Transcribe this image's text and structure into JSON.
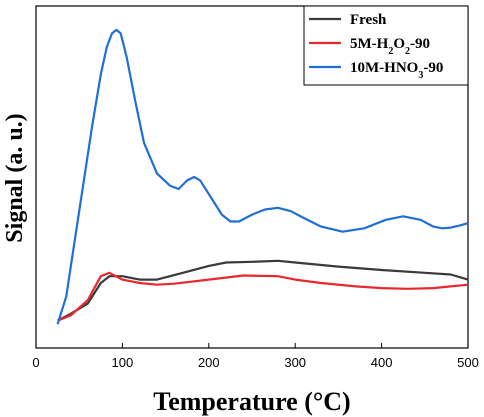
{
  "chart_data": {
    "type": "line",
    "title": "",
    "xlabel": "Temperature (°C)",
    "ylabel": "Signal (a. u.)",
    "xlim": [
      0,
      500
    ],
    "ylim": [
      0,
      100
    ],
    "xticks": [
      0,
      100,
      200,
      300,
      400,
      500
    ],
    "yticks_shown": false,
    "grid": false,
    "legend_position": "top-right",
    "series": [
      {
        "name_parts": [
          {
            "t": "Fresh"
          }
        ],
        "color": "#3a3a3a",
        "x": [
          25,
          40,
          60,
          75,
          85,
          100,
          120,
          140,
          170,
          200,
          220,
          250,
          280,
          300,
          350,
          400,
          450,
          480,
          500
        ],
        "y": [
          8,
          10,
          13,
          19,
          21,
          21,
          20,
          20,
          22,
          24,
          25,
          25.2,
          25.5,
          25,
          23.8,
          22.8,
          22,
          21.5,
          20
        ]
      },
      {
        "name_parts": [
          {
            "t": "5M-H"
          },
          {
            "t": "2",
            "sub": true
          },
          {
            "t": "O"
          },
          {
            "t": "2",
            "sub": true
          },
          {
            "t": "-90"
          }
        ],
        "color": "#e8282e",
        "x": [
          25,
          40,
          60,
          75,
          85,
          100,
          120,
          140,
          160,
          200,
          240,
          280,
          300,
          330,
          370,
          400,
          430,
          460,
          480,
          500
        ],
        "y": [
          8,
          9.5,
          14,
          21,
          22,
          20,
          19,
          18.5,
          18.8,
          20,
          21.2,
          21,
          20,
          19,
          18,
          17.5,
          17.3,
          17.5,
          18,
          18.5
        ]
      },
      {
        "name_parts": [
          {
            "t": "10M-HNO"
          },
          {
            "t": "3",
            "sub": true
          },
          {
            "t": "-90"
          }
        ],
        "color": "#1f6fd6",
        "x": [
          25,
          35,
          50,
          65,
          75,
          82,
          88,
          93,
          98,
          105,
          115,
          125,
          140,
          155,
          165,
          175,
          183,
          190,
          200,
          215,
          225,
          235,
          250,
          265,
          280,
          295,
          310,
          330,
          355,
          380,
          405,
          425,
          445,
          460,
          470,
          480,
          490,
          500
        ],
        "y": [
          7,
          15,
          40,
          65,
          80,
          88,
          92,
          93,
          92,
          85,
          72,
          60,
          51,
          47.5,
          46.5,
          49,
          50,
          49,
          45,
          39,
          37,
          37,
          39,
          40.5,
          41,
          40,
          38,
          35.5,
          34,
          35,
          37.5,
          38.5,
          37.5,
          35.5,
          35,
          35.2,
          35.8,
          36.5
        ]
      }
    ]
  }
}
